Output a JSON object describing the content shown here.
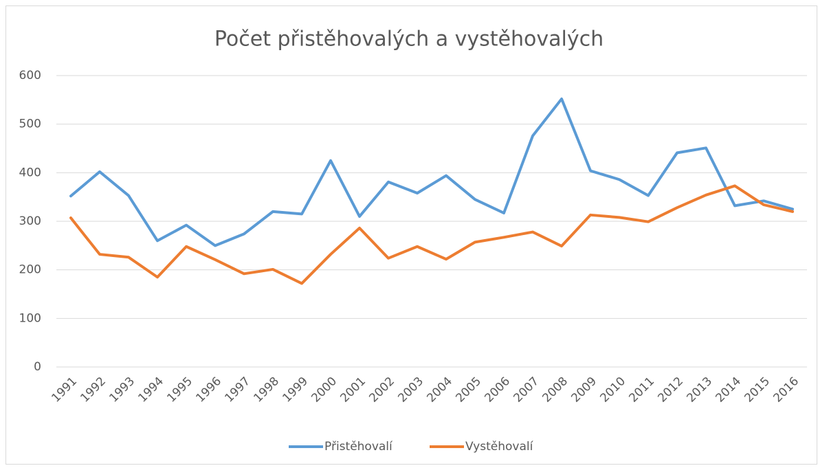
{
  "chart_data": {
    "type": "line",
    "title": "Počet přistěhovalých a vystěhovalých",
    "categories": [
      "1991",
      "1992",
      "1993",
      "1994",
      "1995",
      "1996",
      "1997",
      "1998",
      "1999",
      "2000",
      "2001",
      "2002",
      "2003",
      "2004",
      "2005",
      "2006",
      "2007",
      "2008",
      "2009",
      "2010",
      "2011",
      "2012",
      "2013",
      "2014",
      "2015",
      "2016"
    ],
    "series": [
      {
        "name": "Přistěhovalí",
        "color": "#5b9bd5",
        "values": [
          352,
          402,
          353,
          260,
          292,
          250,
          274,
          320,
          315,
          425,
          310,
          381,
          358,
          394,
          345,
          317,
          476,
          552,
          404,
          386,
          353,
          441,
          451,
          332,
          342,
          325
        ]
      },
      {
        "name": "Vystěhovalí",
        "color": "#ed7d31",
        "values": [
          307,
          232,
          226,
          185,
          248,
          221,
          192,
          201,
          172,
          232,
          286,
          224,
          248,
          222,
          257,
          267,
          278,
          249,
          313,
          308,
          299,
          328,
          354,
          373,
          334,
          320
        ]
      }
    ],
    "ylim": [
      0,
      600
    ],
    "yticks": [
      0,
      100,
      200,
      300,
      400,
      500,
      600
    ],
    "grid": true,
    "legend": "bottom"
  }
}
